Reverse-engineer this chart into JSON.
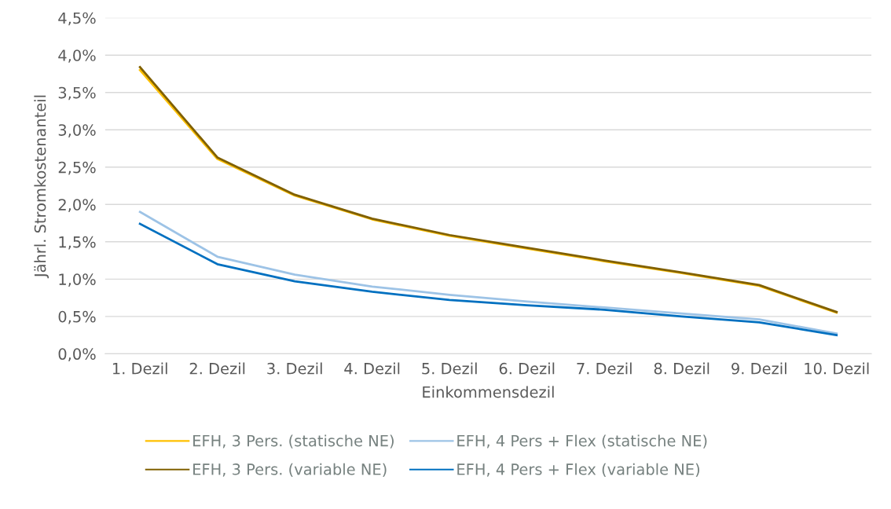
{
  "chart_data": {
    "type": "line",
    "xlabel": "Einkommensdezil",
    "ylabel": "Jährl. Stromkostenanteil",
    "categories": [
      "1. Dezil",
      "2. Dezil",
      "3. Dezil",
      "4. Dezil",
      "5. Dezil",
      "6. Dezil",
      "7. Dezil",
      "8. Dezil",
      "9. Dezil",
      "10. Dezil"
    ],
    "series": [
      {
        "name": "EFH, 3 Pers. (statische NE)",
        "color": "#ffc000",
        "values": [
          3.8,
          2.61,
          2.12,
          1.8,
          1.58,
          1.41,
          1.24,
          1.08,
          0.91,
          0.55
        ]
      },
      {
        "name": "EFH, 3 Pers. (variable NE)",
        "color": "#806000",
        "values": [
          3.84,
          2.63,
          2.13,
          1.81,
          1.59,
          1.42,
          1.25,
          1.09,
          0.92,
          0.56
        ]
      },
      {
        "name": "EFH, 4 Pers + Flex (statische NE)",
        "color": "#9dc3e6",
        "values": [
          1.9,
          1.3,
          1.06,
          0.9,
          0.79,
          0.7,
          0.62,
          0.54,
          0.46,
          0.27
        ]
      },
      {
        "name": "EFH, 4 Pers + Flex (variable NE)",
        "color": "#0070c0",
        "values": [
          1.74,
          1.2,
          0.97,
          0.83,
          0.72,
          0.65,
          0.59,
          0.5,
          0.42,
          0.25
        ]
      }
    ],
    "ylim": [
      0,
      4.5
    ],
    "yticks": [
      {
        "value": 0,
        "label": "0,0%"
      },
      {
        "value": 0.5,
        "label": "0,5%"
      },
      {
        "value": 1,
        "label": "1,0%"
      },
      {
        "value": 1.5,
        "label": "1,5%"
      },
      {
        "value": 2,
        "label": "2,0%"
      },
      {
        "value": 2.5,
        "label": "2,5%"
      },
      {
        "value": 3,
        "label": "3,0%"
      },
      {
        "value": 3.5,
        "label": "3,5%"
      },
      {
        "value": 4,
        "label": "4,0%"
      },
      {
        "value": 4.5,
        "label": "4,5%"
      }
    ],
    "grid": "y",
    "legend": "bottom",
    "marker": "none",
    "line_style": "solid"
  }
}
